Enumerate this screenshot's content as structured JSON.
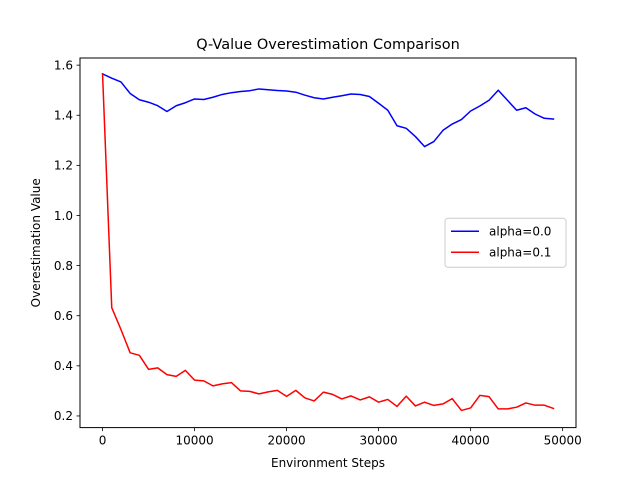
{
  "chart_data": {
    "type": "line",
    "title": "Q-Value Overestimation Comparison",
    "xlabel": "Environment Steps",
    "ylabel": "Overestimation Value",
    "xlim": [
      -2450,
      51450
    ],
    "ylim": [
      0.1535,
      1.6285
    ],
    "xticks": [
      0,
      10000,
      20000,
      30000,
      40000,
      50000
    ],
    "yticks": [
      0.2,
      0.4,
      0.6,
      0.8,
      1.0,
      1.2,
      1.4,
      1.6
    ],
    "ytick_format": 1,
    "grid": false,
    "legend": "center-right",
    "x": [
      0,
      1000,
      2000,
      3000,
      4000,
      5000,
      6000,
      7000,
      8000,
      9000,
      10000,
      11000,
      12000,
      13000,
      14000,
      15000,
      16000,
      17000,
      18000,
      19000,
      20000,
      21000,
      22000,
      23000,
      24000,
      25000,
      26000,
      27000,
      28000,
      29000,
      30000,
      31000,
      32000,
      33000,
      34000,
      35000,
      36000,
      37000,
      38000,
      39000,
      40000,
      41000,
      42000,
      43000,
      44000,
      45000,
      46000,
      47000,
      48000,
      49000
    ],
    "series": [
      {
        "name": "alpha=0.0",
        "color": "#0000ff",
        "values": [
          1.565,
          1.548,
          1.533,
          1.487,
          1.462,
          1.452,
          1.438,
          1.415,
          1.438,
          1.45,
          1.465,
          1.463,
          1.472,
          1.483,
          1.49,
          1.495,
          1.498,
          1.505,
          1.502,
          1.499,
          1.497,
          1.492,
          1.48,
          1.47,
          1.465,
          1.472,
          1.478,
          1.485,
          1.483,
          1.475,
          1.448,
          1.42,
          1.358,
          1.348,
          1.315,
          1.275,
          1.295,
          1.34,
          1.365,
          1.383,
          1.417,
          1.437,
          1.46,
          1.5,
          1.46,
          1.42,
          1.43,
          1.405,
          1.388,
          1.385
        ]
      },
      {
        "name": "alpha=0.1",
        "color": "#ff0000",
        "values": [
          1.565,
          0.632,
          0.545,
          0.452,
          0.442,
          0.386,
          0.392,
          0.365,
          0.358,
          0.382,
          0.343,
          0.34,
          0.32,
          0.328,
          0.333,
          0.3,
          0.298,
          0.288,
          0.296,
          0.302,
          0.278,
          0.302,
          0.272,
          0.26,
          0.295,
          0.286,
          0.268,
          0.28,
          0.264,
          0.276,
          0.255,
          0.266,
          0.238,
          0.279,
          0.24,
          0.255,
          0.242,
          0.248,
          0.269,
          0.222,
          0.232,
          0.282,
          0.277,
          0.228,
          0.228,
          0.235,
          0.252,
          0.243,
          0.243,
          0.23
        ]
      }
    ]
  }
}
